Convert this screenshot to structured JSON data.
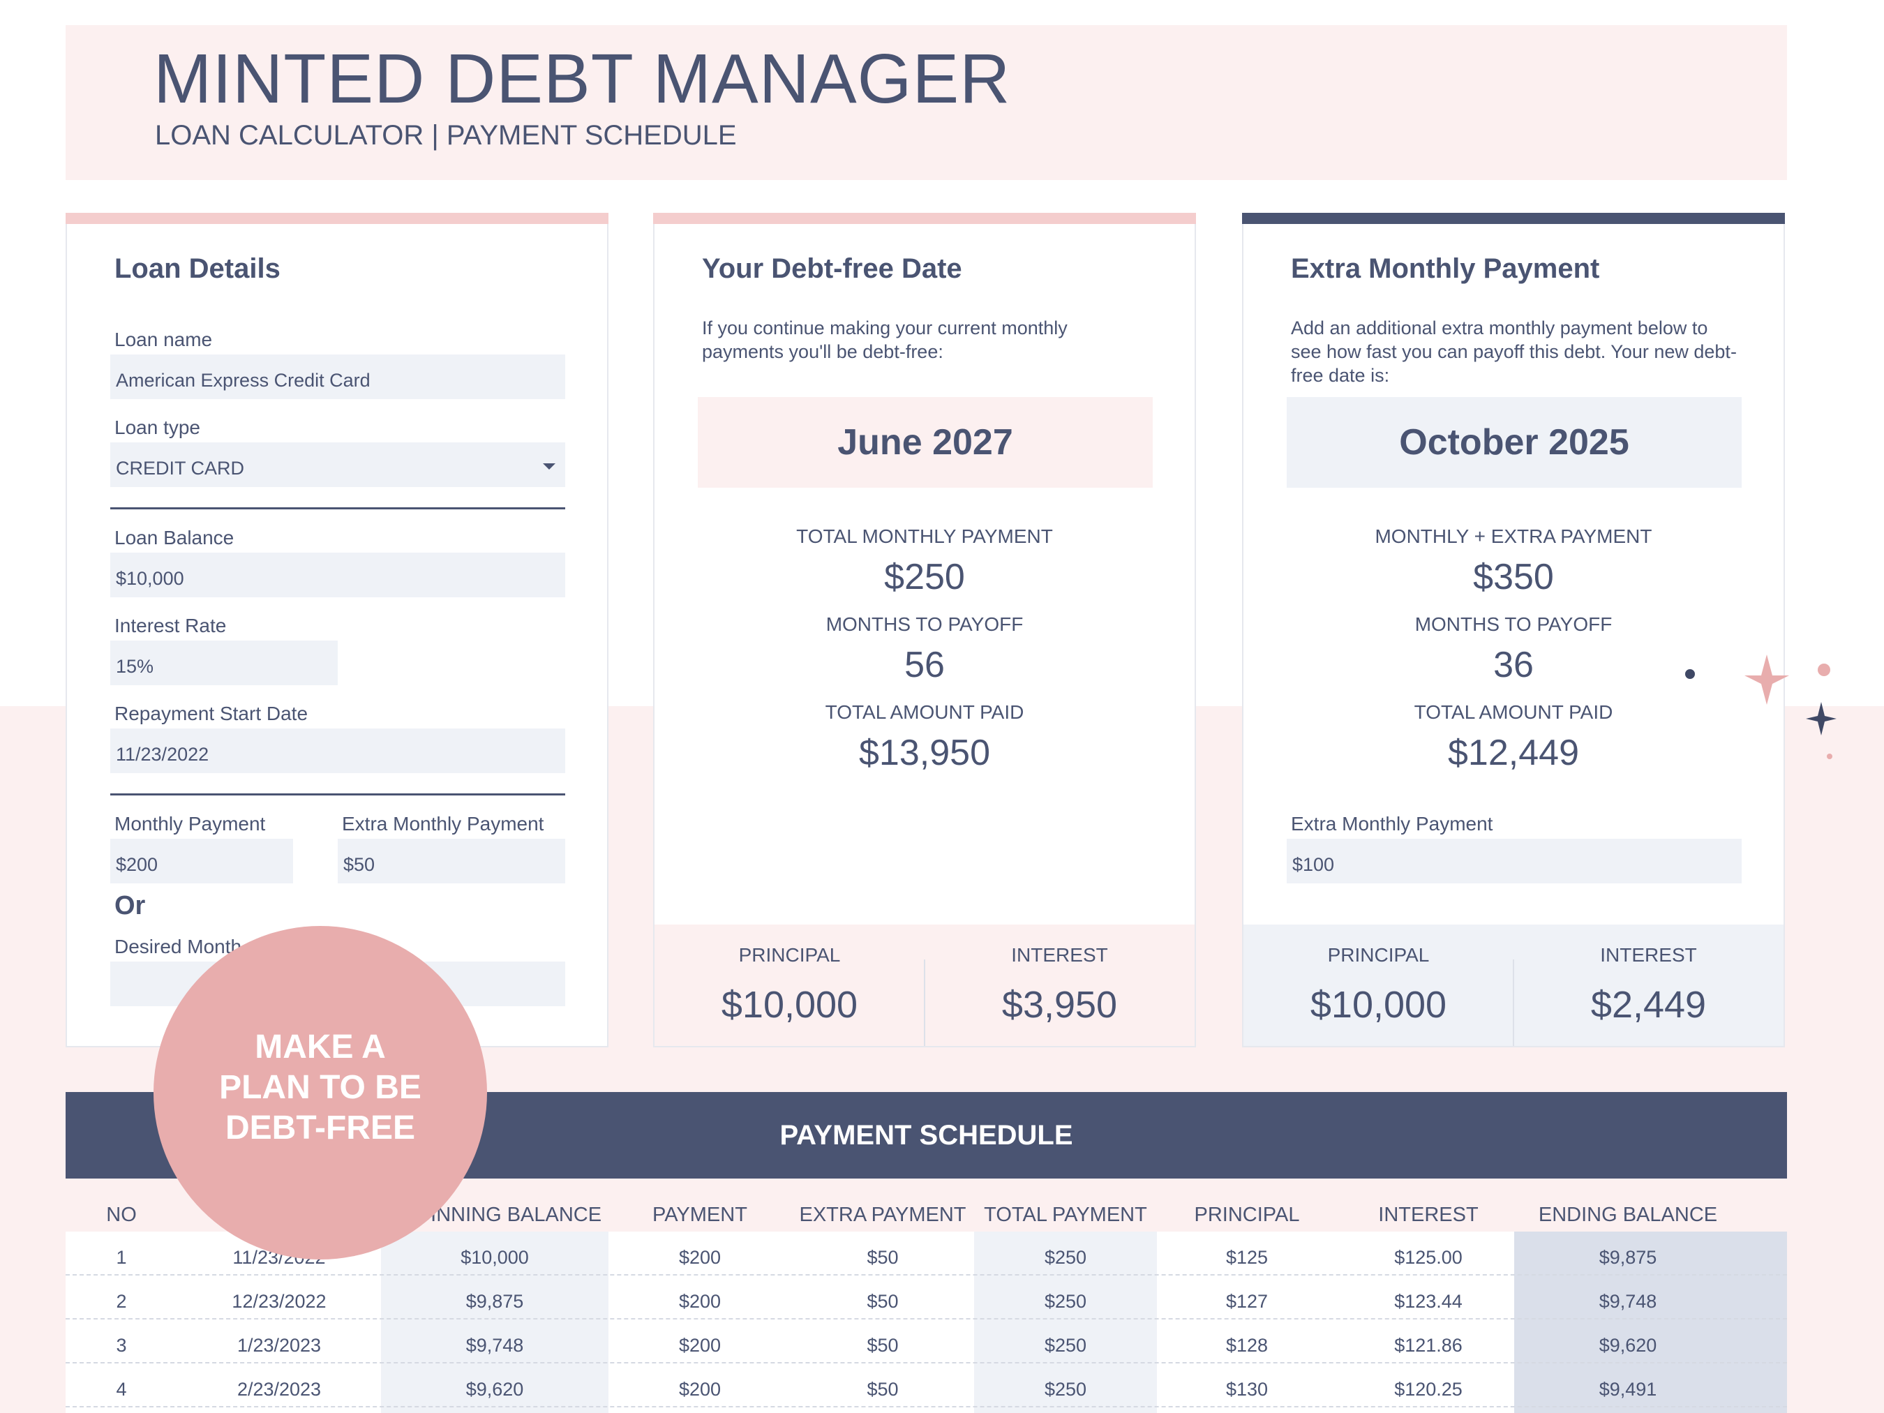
{
  "app": {
    "title": "MINTED DEBT MANAGER",
    "subtitle": "LOAN CALCULATOR | PAYMENT SCHEDULE"
  },
  "colors": {
    "navy": "#4a5472",
    "pink_bg": "#fcf0f0",
    "pink_accent": "#f4cdcd",
    "badge_pink": "#e8adad",
    "field_bg": "#eff2f7"
  },
  "loan_details": {
    "title": "Loan Details",
    "loan_name_label": "Loan name",
    "loan_name_value": "American Express Credit Card",
    "loan_type_label": "Loan type",
    "loan_type_value": "CREDIT CARD",
    "loan_balance_label": "Loan Balance",
    "loan_balance_value": "$10,000",
    "interest_rate_label": "Interest Rate",
    "interest_rate_value": "15%",
    "start_date_label": "Repayment Start Date",
    "start_date_value": "11/23/2022",
    "monthly_payment_label": "Monthly Payment",
    "monthly_payment_value": "$200",
    "extra_payment_label": "Extra Monthly Payment",
    "extra_payment_value": "$50",
    "or_label": "Or",
    "desired_label": "Desired Month",
    "desired_value": ""
  },
  "debt_free": {
    "title": "Your Debt-free Date",
    "description": "If you continue making your current monthly payments you'll be debt-free:",
    "date": "June 2027",
    "total_monthly_label": "TOTAL MONTHLY PAYMENT",
    "total_monthly_value": "$250",
    "months_label": "MONTHS TO PAYOFF",
    "months_value": "56",
    "total_paid_label": "TOTAL AMOUNT PAID",
    "total_paid_value": "$13,950",
    "principal_label": "PRINCIPAL",
    "principal_value": "$10,000",
    "interest_label": "INTEREST",
    "interest_value": "$3,950"
  },
  "extra_payment": {
    "title": "Extra Monthly Payment",
    "description": "Add an additional extra monthly payment below to see how fast you can payoff this debt. Your new debt-free date is:",
    "date": "October 2025",
    "total_monthly_label": "MONTHLY + EXTRA PAYMENT",
    "total_monthly_value": "$350",
    "months_label": "MONTHS TO PAYOFF",
    "months_value": "36",
    "total_paid_label": "TOTAL AMOUNT PAID",
    "total_paid_value": "$12,449",
    "extra_label": "Extra Monthly Payment",
    "extra_value": "$100",
    "principal_label": "PRINCIPAL",
    "principal_value": "$10,000",
    "interest_label": "INTEREST",
    "interest_value": "$2,449"
  },
  "badge": {
    "line1": "MAKE A",
    "line2": "PLAN TO BE",
    "line3": "DEBT-FREE"
  },
  "schedule": {
    "title": "PAYMENT SCHEDULE",
    "headers": [
      "NO",
      "",
      "BEGINNING BALANCE",
      "PAYMENT",
      "EXTRA PAYMENT",
      "TOTAL PAYMENT",
      "PRINCIPAL",
      "INTEREST",
      "ENDING BALANCE"
    ],
    "rows": [
      [
        "1",
        "11/23/2022",
        "$10,000",
        "$200",
        "$50",
        "$250",
        "$125",
        "$125.00",
        "$9,875"
      ],
      [
        "2",
        "12/23/2022",
        "$9,875",
        "$200",
        "$50",
        "$250",
        "$127",
        "$123.44",
        "$9,748"
      ],
      [
        "3",
        "1/23/2023",
        "$9,748",
        "$200",
        "$50",
        "$250",
        "$128",
        "$121.86",
        "$9,620"
      ],
      [
        "4",
        "2/23/2023",
        "$9,620",
        "$200",
        "$50",
        "$250",
        "$130",
        "$120.25",
        "$9,491"
      ]
    ]
  }
}
